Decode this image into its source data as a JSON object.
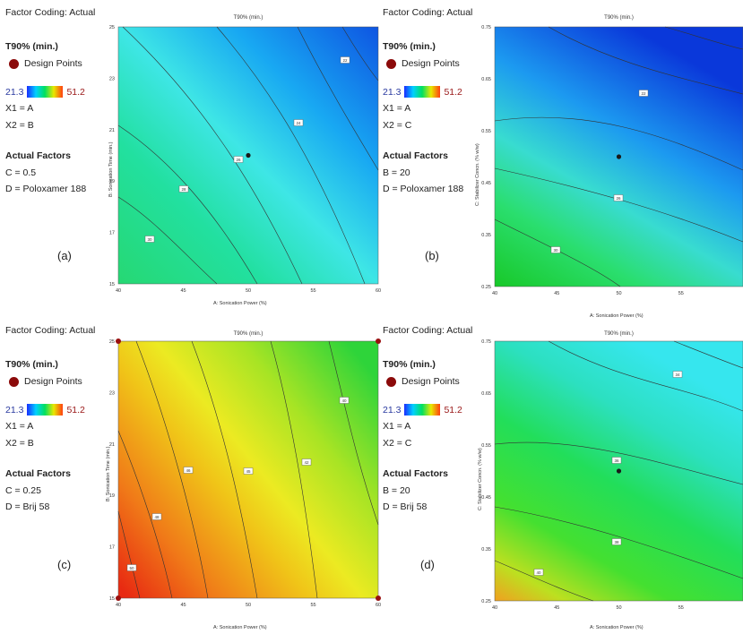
{
  "colorbar": {
    "low": "21.3",
    "high": "51.2"
  },
  "chart_data": [
    {
      "type": "heatmap",
      "panel_label": "(a)",
      "header": "Factor Coding: Actual",
      "title": "T90% (min.)",
      "legend_title": "T90% (min.)",
      "legend_points": "Design Points",
      "x1": "X1 = A",
      "x2": "X2 = B",
      "actual_factors_label": "Actual Factors",
      "factor_1": "C = 0.5",
      "factor_2": "D = Poloxamer 188",
      "xlabel": "A: Sonication Power (%)",
      "ylabel": "B: Sonication Time (min.)",
      "xlim": [
        40,
        60
      ],
      "ylim": [
        15,
        25
      ],
      "xticks": [
        "40",
        "45",
        "50",
        "55",
        "60"
      ],
      "yticks": [
        "15",
        "17",
        "19",
        "21",
        "23",
        "25"
      ],
      "design_points": [
        [
          50,
          20
        ]
      ],
      "contour_labels": [
        "30",
        "28",
        "26",
        "24",
        "22",
        "22.4"
      ]
    },
    {
      "type": "heatmap",
      "panel_label": "(b)",
      "header": "Factor Coding: Actual",
      "title": "T90% (min.)",
      "legend_title": "T90% (min.)",
      "legend_points": "Design Points",
      "x1": "X1 = A",
      "x2": "X2 = C",
      "actual_factors_label": "Actual Factors",
      "factor_1": "B = 20",
      "factor_2": "D = Poloxamer 188",
      "xlabel": "A: Sonication Power (%)",
      "ylabel": "C: Stabilizer Concn. (% w/w)",
      "xlim": [
        40,
        60
      ],
      "ylim": [
        0.25,
        0.75
      ],
      "xticks": [
        "40",
        "45",
        "50",
        "55"
      ],
      "yticks": [
        "0.25",
        "0.35",
        "0.45",
        "0.55",
        "0.65",
        "0.75"
      ],
      "design_points": [
        [
          50,
          0.5
        ]
      ],
      "contour_labels": [
        "30",
        "26",
        "22"
      ]
    },
    {
      "type": "heatmap",
      "panel_label": "(c)",
      "header": "Factor Coding: Actual",
      "title": "T90% (min.)",
      "legend_title": "T90% (min.)",
      "legend_points": "Design Points",
      "x1": "X1 = A",
      "x2": "X2 = B",
      "actual_factors_label": "Actual Factors",
      "factor_1": "C = 0.25",
      "factor_2": "D = Brij 58",
      "xlabel": "A: Sonication Power (%)",
      "ylabel": "B: Sonication Time (min.)",
      "xlim": [
        40,
        60
      ],
      "ylim": [
        15,
        25
      ],
      "xticks": [
        "40",
        "45",
        "50",
        "55",
        "60"
      ],
      "yticks": [
        "15",
        "17",
        "19",
        "21",
        "23",
        "25"
      ],
      "design_points": [
        [
          40,
          15
        ],
        [
          40,
          25
        ],
        [
          60,
          15
        ],
        [
          60,
          25
        ]
      ],
      "contour_labels": [
        "50",
        "48",
        "46",
        "45",
        "42",
        "40"
      ]
    },
    {
      "type": "heatmap",
      "panel_label": "(d)",
      "header": "Factor Coding: Actual",
      "title": "T90% (min.)",
      "legend_title": "T90% (min.)",
      "legend_points": "Design Points",
      "x1": "X1 = A",
      "x2": "X2 = C",
      "actual_factors_label": "Actual Factors",
      "factor_1": "B = 20",
      "factor_2": "D = Brij 58",
      "xlabel": "A: Sonication Power (%)",
      "ylabel": "C: Stabilizer Concn. (% w/w)",
      "xlim": [
        40,
        60
      ],
      "ylim": [
        0.25,
        0.75
      ],
      "xticks": [
        "40",
        "45",
        "50",
        "55"
      ],
      "yticks": [
        "0.25",
        "0.35",
        "0.45",
        "0.55",
        "0.65",
        "0.75"
      ],
      "design_points": [
        [
          50,
          0.5
        ]
      ],
      "contour_labels": [
        "40",
        "38",
        "36",
        "34"
      ]
    }
  ]
}
